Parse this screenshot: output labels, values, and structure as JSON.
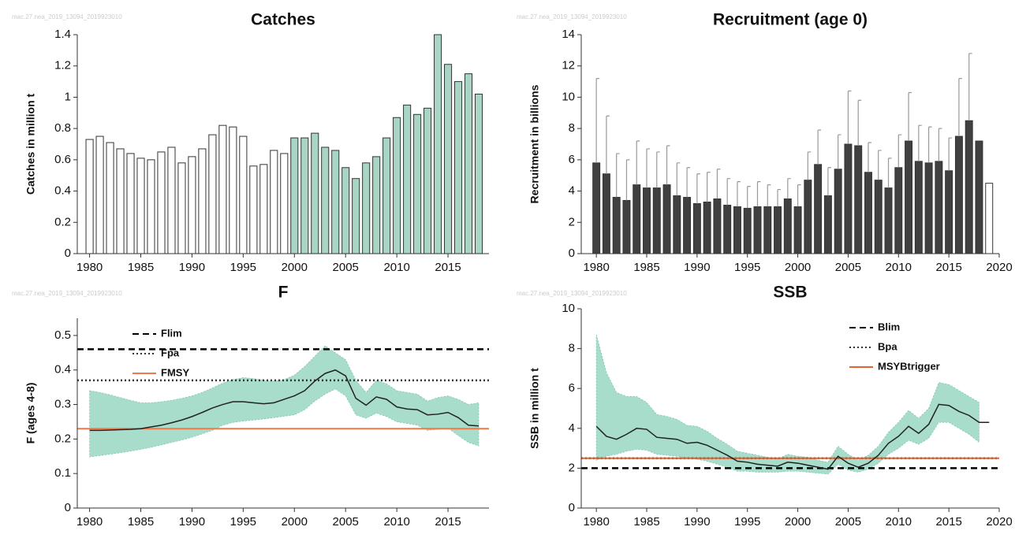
{
  "chart_data": [
    {
      "type": "bar",
      "title": "Catches",
      "ylabel": "Catches in million t",
      "watermark": "mac.27.nea_2019_13094_2019923010",
      "x": [
        1980,
        1981,
        1982,
        1983,
        1984,
        1985,
        1986,
        1987,
        1988,
        1989,
        1990,
        1991,
        1992,
        1993,
        1994,
        1995,
        1996,
        1997,
        1998,
        1999,
        2000,
        2001,
        2002,
        2003,
        2004,
        2005,
        2006,
        2007,
        2008,
        2009,
        2010,
        2011,
        2012,
        2013,
        2014,
        2015,
        2016,
        2017,
        2018
      ],
      "values": [
        0.73,
        0.75,
        0.71,
        0.67,
        0.64,
        0.61,
        0.6,
        0.65,
        0.68,
        0.58,
        0.62,
        0.67,
        0.76,
        0.82,
        0.81,
        0.75,
        0.56,
        0.57,
        0.66,
        0.64,
        0.74,
        0.74,
        0.77,
        0.68,
        0.66,
        0.55,
        0.48,
        0.58,
        0.62,
        0.74,
        0.87,
        0.95,
        0.89,
        0.93,
        1.4,
        1.21,
        1.1,
        1.15,
        1.02
      ],
      "colors": [
        "#ffffff",
        "#ffffff",
        "#ffffff",
        "#ffffff",
        "#ffffff",
        "#ffffff",
        "#ffffff",
        "#ffffff",
        "#ffffff",
        "#ffffff",
        "#ffffff",
        "#ffffff",
        "#ffffff",
        "#ffffff",
        "#ffffff",
        "#ffffff",
        "#ffffff",
        "#ffffff",
        "#ffffff",
        "#ffffff",
        "#a9d5c5",
        "#a9d5c5",
        "#a9d5c5",
        "#a9d5c5",
        "#a9d5c5",
        "#a9d5c5",
        "#a9d5c5",
        "#a9d5c5",
        "#a9d5c5",
        "#a9d5c5",
        "#a9d5c5",
        "#a9d5c5",
        "#a9d5c5",
        "#a9d5c5",
        "#a9d5c5",
        "#a9d5c5",
        "#a9d5c5",
        "#a9d5c5",
        "#a9d5c5"
      ],
      "xlim": [
        1978.8,
        2019
      ],
      "xticks": [
        1980,
        1985,
        1990,
        1995,
        2000,
        2005,
        2010,
        2015
      ],
      "ylim": [
        0,
        1.4
      ],
      "yticks": [
        0,
        0.2,
        0.4,
        0.6,
        0.8,
        1,
        1.2,
        1.4
      ]
    },
    {
      "type": "bar",
      "title": "Recruitment (age 0)",
      "ylabel": "Recruitment in billions",
      "watermark": "mac.27.nea_2019_13094_2019923010",
      "x": [
        1980,
        1981,
        1982,
        1983,
        1984,
        1985,
        1986,
        1987,
        1988,
        1989,
        1990,
        1991,
        1992,
        1993,
        1994,
        1995,
        1996,
        1997,
        1998,
        1999,
        2000,
        2001,
        2002,
        2003,
        2004,
        2005,
        2006,
        2007,
        2008,
        2009,
        2010,
        2011,
        2012,
        2013,
        2014,
        2015,
        2016,
        2017,
        2018,
        2019
      ],
      "values": [
        5.8,
        5.1,
        3.6,
        3.4,
        4.4,
        4.2,
        4.2,
        4.4,
        3.7,
        3.6,
        3.2,
        3.3,
        3.5,
        3.1,
        3.0,
        2.9,
        3.0,
        3.0,
        3.0,
        3.5,
        3.0,
        4.7,
        5.7,
        3.7,
        5.4,
        7.0,
        6.9,
        5.2,
        4.7,
        4.2,
        5.5,
        7.2,
        5.9,
        5.8,
        5.9,
        5.3,
        7.5,
        8.5,
        7.2,
        4.5
      ],
      "upper": [
        11.2,
        8.8,
        6.4,
        6.0,
        7.2,
        6.7,
        6.5,
        6.9,
        5.8,
        5.5,
        5.1,
        5.2,
        5.4,
        4.8,
        4.6,
        4.3,
        4.6,
        4.4,
        4.1,
        4.8,
        4.4,
        6.5,
        7.9,
        5.5,
        7.6,
        10.4,
        9.8,
        7.1,
        6.6,
        6.1,
        7.6,
        10.3,
        8.2,
        8.1,
        8.0,
        7.4,
        11.2,
        12.8,
        null,
        null
      ],
      "colors": [
        "#404040",
        "#404040",
        "#404040",
        "#404040",
        "#404040",
        "#404040",
        "#404040",
        "#404040",
        "#404040",
        "#404040",
        "#404040",
        "#404040",
        "#404040",
        "#404040",
        "#404040",
        "#404040",
        "#404040",
        "#404040",
        "#404040",
        "#404040",
        "#404040",
        "#404040",
        "#404040",
        "#404040",
        "#404040",
        "#404040",
        "#404040",
        "#404040",
        "#404040",
        "#404040",
        "#404040",
        "#404040",
        "#404040",
        "#404040",
        "#404040",
        "#404040",
        "#404040",
        "#404040",
        "#404040",
        "#ffffff"
      ],
      "xlim": [
        1978.5,
        2020
      ],
      "xticks": [
        1980,
        1985,
        1990,
        1995,
        2000,
        2005,
        2010,
        2015,
        2020
      ],
      "ylim": [
        0,
        14
      ],
      "yticks": [
        0,
        2,
        4,
        6,
        8,
        10,
        12,
        14
      ]
    },
    {
      "type": "line",
      "title": "F",
      "ylabel": "F (ages 4-8)",
      "watermark": "mac.27.nea_2019_13094_2019923010",
      "x": [
        1980,
        1981,
        1982,
        1983,
        1984,
        1985,
        1986,
        1987,
        1988,
        1989,
        1990,
        1991,
        1992,
        1993,
        1994,
        1995,
        1996,
        1997,
        1998,
        1999,
        2000,
        2001,
        2002,
        2003,
        2004,
        2005,
        2006,
        2007,
        2008,
        2009,
        2010,
        2011,
        2012,
        2013,
        2014,
        2015,
        2016,
        2017,
        2018
      ],
      "values": [
        0.225,
        0.225,
        0.226,
        0.227,
        0.228,
        0.23,
        0.235,
        0.24,
        0.247,
        0.255,
        0.265,
        0.277,
        0.29,
        0.3,
        0.308,
        0.308,
        0.305,
        0.302,
        0.305,
        0.315,
        0.325,
        0.34,
        0.368,
        0.39,
        0.4,
        0.383,
        0.318,
        0.298,
        0.322,
        0.315,
        0.293,
        0.287,
        0.285,
        0.27,
        0.272,
        0.277,
        0.262,
        0.24,
        0.238
      ],
      "low": [
        0.148,
        0.152,
        0.156,
        0.16,
        0.165,
        0.17,
        0.176,
        0.183,
        0.19,
        0.197,
        0.205,
        0.215,
        0.225,
        0.24,
        0.248,
        0.252,
        0.255,
        0.258,
        0.262,
        0.266,
        0.27,
        0.285,
        0.31,
        0.33,
        0.345,
        0.325,
        0.27,
        0.26,
        0.275,
        0.265,
        0.25,
        0.245,
        0.24,
        0.225,
        0.228,
        0.232,
        0.21,
        0.19,
        0.18
      ],
      "high": [
        0.34,
        0.335,
        0.328,
        0.32,
        0.312,
        0.305,
        0.305,
        0.308,
        0.312,
        0.318,
        0.325,
        0.335,
        0.348,
        0.362,
        0.372,
        0.378,
        0.375,
        0.37,
        0.368,
        0.372,
        0.385,
        0.41,
        0.44,
        0.47,
        0.45,
        0.43,
        0.37,
        0.335,
        0.37,
        0.36,
        0.34,
        0.335,
        0.33,
        0.31,
        0.32,
        0.325,
        0.315,
        0.3,
        0.305
      ],
      "color": "#222222",
      "band_color": "#a8dccb",
      "hlines": [
        {
          "name": "Flim",
          "value": 0.46,
          "color": "#000000",
          "style": "dashed"
        },
        {
          "name": "Fpa",
          "value": 0.37,
          "color": "#333333",
          "style": "dotted"
        },
        {
          "name": "FMSY",
          "value": 0.23,
          "color": "#f0784a",
          "style": "solid"
        }
      ],
      "legend": "upper left",
      "xlim": [
        1978.8,
        2019
      ],
      "xticks": [
        1980,
        1985,
        1990,
        1995,
        2000,
        2005,
        2010,
        2015
      ],
      "ylim": [
        0,
        0.55
      ],
      "yticks": [
        0,
        0.1,
        0.2,
        0.3,
        0.4,
        0.5
      ]
    },
    {
      "type": "line",
      "title": "SSB",
      "ylabel": "SSB in million t",
      "watermark": "mac.27.nea_2019_13094_2019923010",
      "x": [
        1980,
        1981,
        1982,
        1983,
        1984,
        1985,
        1986,
        1987,
        1988,
        1989,
        1990,
        1991,
        1992,
        1993,
        1994,
        1995,
        1996,
        1997,
        1998,
        1999,
        2000,
        2001,
        2002,
        2003,
        2004,
        2005,
        2006,
        2007,
        2008,
        2009,
        2010,
        2011,
        2012,
        2013,
        2014,
        2015,
        2016,
        2017,
        2018,
        2019
      ],
      "values": [
        4.1,
        3.6,
        3.45,
        3.7,
        4.0,
        3.95,
        3.55,
        3.5,
        3.45,
        3.25,
        3.3,
        3.15,
        2.9,
        2.65,
        2.35,
        2.3,
        2.2,
        2.15,
        2.1,
        2.3,
        2.25,
        2.15,
        2.05,
        1.95,
        2.6,
        2.25,
        2.05,
        2.25,
        2.65,
        3.25,
        3.6,
        4.1,
        3.75,
        4.2,
        5.2,
        5.15,
        4.85,
        4.65,
        4.3,
        4.3
      ],
      "low": [
        2.4,
        2.6,
        2.7,
        2.85,
        2.95,
        2.9,
        2.7,
        2.65,
        2.6,
        2.5,
        2.45,
        2.35,
        2.2,
        2.05,
        1.85,
        1.85,
        1.8,
        1.8,
        1.8,
        1.85,
        1.85,
        1.8,
        1.75,
        1.7,
        2.2,
        1.9,
        1.8,
        1.95,
        2.25,
        2.7,
        3.0,
        3.4,
        3.2,
        3.5,
        4.3,
        4.3,
        4.0,
        3.7,
        3.3,
        null
      ],
      "high": [
        8.7,
        6.8,
        5.8,
        5.6,
        5.6,
        5.3,
        4.7,
        4.6,
        4.45,
        4.15,
        4.1,
        3.85,
        3.5,
        3.2,
        2.85,
        2.75,
        2.65,
        2.55,
        2.45,
        2.7,
        2.6,
        2.55,
        2.4,
        2.3,
        3.1,
        2.7,
        2.4,
        2.65,
        3.1,
        3.8,
        4.3,
        4.9,
        4.5,
        5.0,
        6.3,
        6.2,
        5.9,
        5.6,
        5.3,
        null
      ],
      "color": "#222222",
      "band_color": "#a8dccb",
      "hlines": [
        {
          "name": "Blim",
          "value": 2.0,
          "color": "#000000",
          "style": "dashed"
        },
        {
          "name": "Bpa",
          "value": 2.5,
          "color": "#333333",
          "style": "dotted"
        },
        {
          "name": "MSYBtrigger",
          "value": 2.5,
          "color": "#e8602c",
          "style": "solid"
        }
      ],
      "legend": "upper right",
      "xlim": [
        1978.5,
        2020
      ],
      "xticks": [
        1980,
        1985,
        1990,
        1995,
        2000,
        2005,
        2010,
        2015,
        2020
      ],
      "ylim": [
        0,
        10
      ],
      "yticks": [
        0,
        2,
        4,
        6,
        8,
        10
      ]
    }
  ]
}
